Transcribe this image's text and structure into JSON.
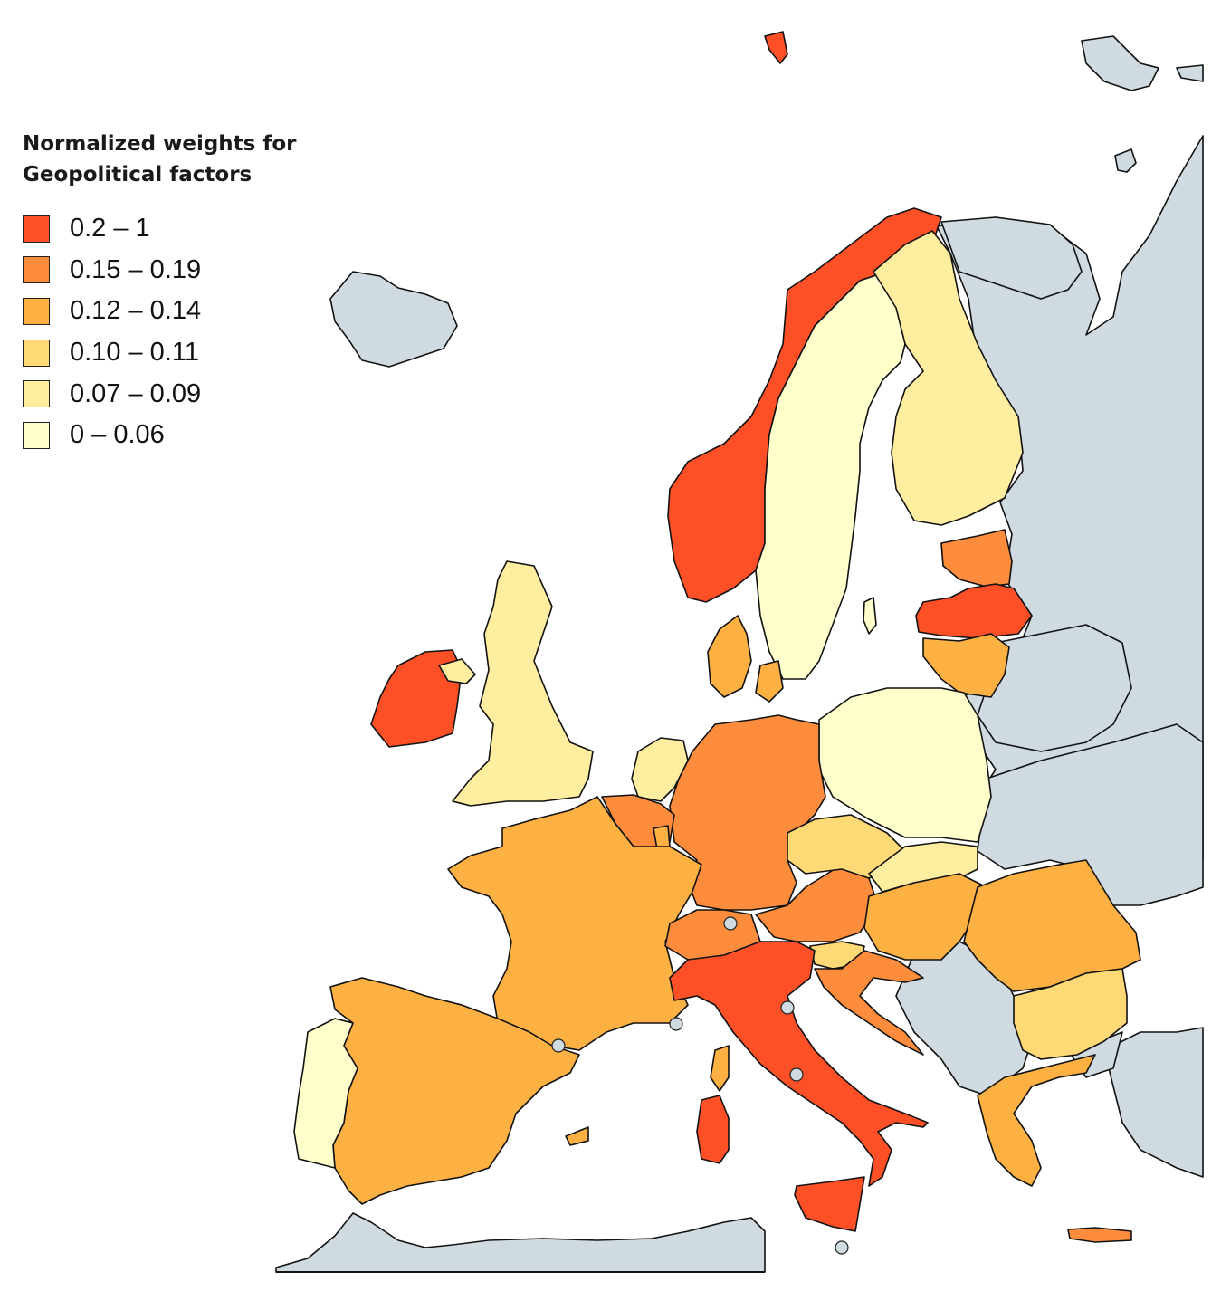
{
  "legend": {
    "title_line1": "Normalized weights for",
    "title_line2": "Geopolitical factors",
    "classes": [
      {
        "label": "0.2 – 1",
        "color": "#fe5026"
      },
      {
        "label": "0.15 – 0.19",
        "color": "#fd8d3c"
      },
      {
        "label": "0.12 – 0.14",
        "color": "#fdb143"
      },
      {
        "label": "0.10 – 0.11",
        "color": "#fed976"
      },
      {
        "label": "0.07 – 0.09",
        "color": "#ffeda0"
      },
      {
        "label": "0 – 0.06",
        "color": "#ffffcc"
      }
    ]
  },
  "map_colors": {
    "non_study_land": "#cfdbe0",
    "water": "#ffffff",
    "point_marker": "#cfdbe0"
  }
}
